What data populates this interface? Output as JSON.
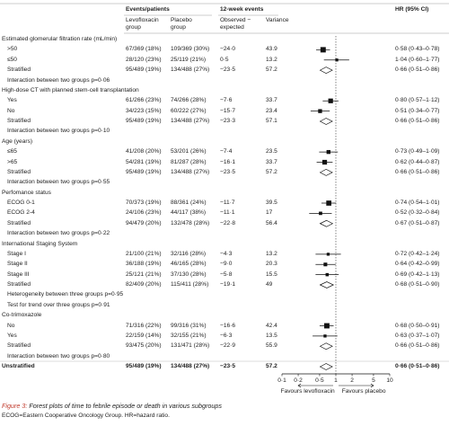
{
  "header": {
    "events": "Events/patients",
    "lev": "Levofloxacin group",
    "pla": "Placebo group",
    "week": "12-week events",
    "oe": "Observed − expected",
    "var": "Variance",
    "hr": "HR (95% CI)"
  },
  "groups": [
    {
      "title": "Estimated glomerular filtration rate (mL/min)",
      "rows": [
        {
          "label": ">50",
          "lev": "67/369 (18%)",
          "pla": "109/369 (30%)",
          "oe": "−24·0",
          "var": 43.9,
          "hr": "0·58 (0·43–0·78)",
          "ci": [
            0.58,
            0.43,
            0.78
          ]
        },
        {
          "label": "≤50",
          "lev": "28/120 (23%)",
          "pla": "25/119 (21%)",
          "oe": "0·5",
          "var": 13.2,
          "hr": "1·04 (0·60–1·77)",
          "ci": [
            1.04,
            0.6,
            1.77
          ]
        }
      ],
      "stratified": {
        "label": "Stratified",
        "lev": "95/489 (19%)",
        "pla": "134/488 (27%)",
        "oe": "−23·5",
        "var": 57.2,
        "hr": "0·66 (0·51–0·86)",
        "ci": [
          0.66,
          0.51,
          0.86
        ]
      },
      "notes": [
        "Interaction between two groups p=0·06"
      ]
    },
    {
      "title": "High-dose CT with planned stem-cell transplantation",
      "rows": [
        {
          "label": "Yes",
          "lev": "61/266 (23%)",
          "pla": "74/266 (28%)",
          "oe": "−7·6",
          "var": 33.7,
          "hr": "0·80 (0·57–1·12)",
          "ci": [
            0.8,
            0.57,
            1.12
          ]
        },
        {
          "label": "No",
          "lev": "34/223 (15%)",
          "pla": "60/222 (27%)",
          "oe": "−15·7",
          "var": 23.4,
          "hr": "0·51 (0·34–0·77)",
          "ci": [
            0.51,
            0.34,
            0.77
          ]
        }
      ],
      "stratified": {
        "label": "Stratified",
        "lev": "95/489 (19%)",
        "pla": "134/488 (27%)",
        "oe": "−23·3",
        "var": 57.1,
        "hr": "0·66 (0·51–0·86)",
        "ci": [
          0.66,
          0.51,
          0.86
        ]
      },
      "notes": [
        "Interaction between two groups p=0·10"
      ]
    },
    {
      "title": "Age (years)",
      "rows": [
        {
          "label": "≤65",
          "lev": "41/208 (20%)",
          "pla": "53/201 (26%)",
          "oe": "−7·4",
          "var": 23.5,
          "hr": "0·73 (0·49–1·09)",
          "ci": [
            0.73,
            0.49,
            1.09
          ]
        },
        {
          "label": ">65",
          "lev": "54/281 (19%)",
          "pla": "81/287 (28%)",
          "oe": "−16·1",
          "var": 33.7,
          "hr": "0·62 (0·44–0·87)",
          "ci": [
            0.62,
            0.44,
            0.87
          ]
        }
      ],
      "stratified": {
        "label": "Stratified",
        "lev": "95/489 (19%)",
        "pla": "134/488 (27%)",
        "oe": "−23·5",
        "var": 57.2,
        "hr": "0·66 (0·51–0·86)",
        "ci": [
          0.66,
          0.51,
          0.86
        ]
      },
      "notes": [
        "Interaction between two groups p=0·55"
      ]
    },
    {
      "title": "Perfomance status",
      "rows": [
        {
          "label": "ECOG 0-1",
          "lev": "70/373 (19%)",
          "pla": "88/361 (24%)",
          "oe": "−11·7",
          "var": 39.5,
          "hr": "0·74 (0·54–1·01)",
          "ci": [
            0.74,
            0.54,
            1.01
          ]
        },
        {
          "label": "ECOG 2-4",
          "lev": "24/106 (23%)",
          "pla": "44/117 (38%)",
          "oe": "−11·1",
          "var": 17.0,
          "hr": "0·52 (0·32–0·84)",
          "ci": [
            0.52,
            0.32,
            0.84
          ]
        }
      ],
      "stratified": {
        "label": "Stratified",
        "lev": "94/479 (20%)",
        "pla": "132/478 (28%)",
        "oe": "−22·8",
        "var": 56.4,
        "hr": "0·67 (0·51–0·87)",
        "ci": [
          0.67,
          0.51,
          0.87
        ]
      },
      "notes": [
        "Interaction between two groups p=0·22"
      ]
    },
    {
      "title": "International Staging System",
      "rows": [
        {
          "label": "Stage I",
          "lev": "21/100 (21%)",
          "pla": "32/116 (28%)",
          "oe": "−4·3",
          "var": 13.2,
          "hr": "0·72 (0·42–1·24)",
          "ci": [
            0.72,
            0.42,
            1.24
          ]
        },
        {
          "label": "Stage II",
          "lev": "36/188 (19%)",
          "pla": "46/165 (28%)",
          "oe": "−9·0",
          "var": 20.3,
          "hr": "0·64 (0·42–0·99)",
          "ci": [
            0.64,
            0.42,
            0.99
          ]
        },
        {
          "label": "Stage III",
          "lev": "25/121 (21%)",
          "pla": "37/130 (28%)",
          "oe": "−5·8",
          "var": 15.5,
          "hr": "0·69 (0·42–1·13)",
          "ci": [
            0.69,
            0.42,
            1.13
          ]
        }
      ],
      "stratified": {
        "label": "Stratified",
        "lev": "82/409 (20%)",
        "pla": "115/411 (28%)",
        "oe": "−19·1",
        "var": 49.0,
        "hr": "0·68 (0·51–0·90)",
        "ci": [
          0.68,
          0.51,
          0.9
        ]
      },
      "notes": [
        "Heterogeneity between three groups p=0·95",
        "Test for trend over three groups p=0·91"
      ]
    },
    {
      "title": "Co-trimoxazole",
      "rows": [
        {
          "label": "No",
          "lev": "71/316 (22%)",
          "pla": "99/316 (31%)",
          "oe": "−16·6",
          "var": 42.4,
          "hr": "0·68 (0·50–0·91)",
          "ci": [
            0.68,
            0.5,
            0.91
          ]
        },
        {
          "label": "Yes",
          "lev": "22/159 (14%)",
          "pla": "32/155 (21%)",
          "oe": "−6·3",
          "var": 13.5,
          "hr": "0·63 (0·37–1·07)",
          "ci": [
            0.63,
            0.37,
            1.07
          ]
        }
      ],
      "stratified": {
        "label": "Stratified",
        "lev": "93/475 (20%)",
        "pla": "131/471 (28%)",
        "oe": "−22·9",
        "var": 55.9,
        "hr": "0·66 (0·51–0·86)",
        "ci": [
          0.66,
          0.51,
          0.86
        ]
      },
      "notes": [
        "Interaction between two groups p=0·80"
      ]
    }
  ],
  "total": {
    "label": "Unstratified",
    "lev": "95/489 (19%)",
    "pla": "134/488 (27%)",
    "oe": "−23·5",
    "var": 57.2,
    "hr": "0·66 (0·51–0·86)",
    "ci": [
      0.66,
      0.51,
      0.86
    ]
  },
  "axis": {
    "log": true,
    "xlim": [
      0.1,
      10
    ],
    "xticks": [
      {
        "value": 0.1,
        "label": "0·1"
      },
      {
        "value": 0.2,
        "label": "0·2"
      },
      {
        "value": 0.5,
        "label": "0·5"
      },
      1,
      2,
      5,
      10
    ],
    "left": "Favours levofloxacin",
    "right": "Favours placebo"
  },
  "caption": {
    "label": "Figure 3:",
    "text": "Forest plots of time to febrile episode or death in various subgroups"
  },
  "note": "ECOG=Eastern Cooperative Oncology Group. HR=hazard ratio."
}
